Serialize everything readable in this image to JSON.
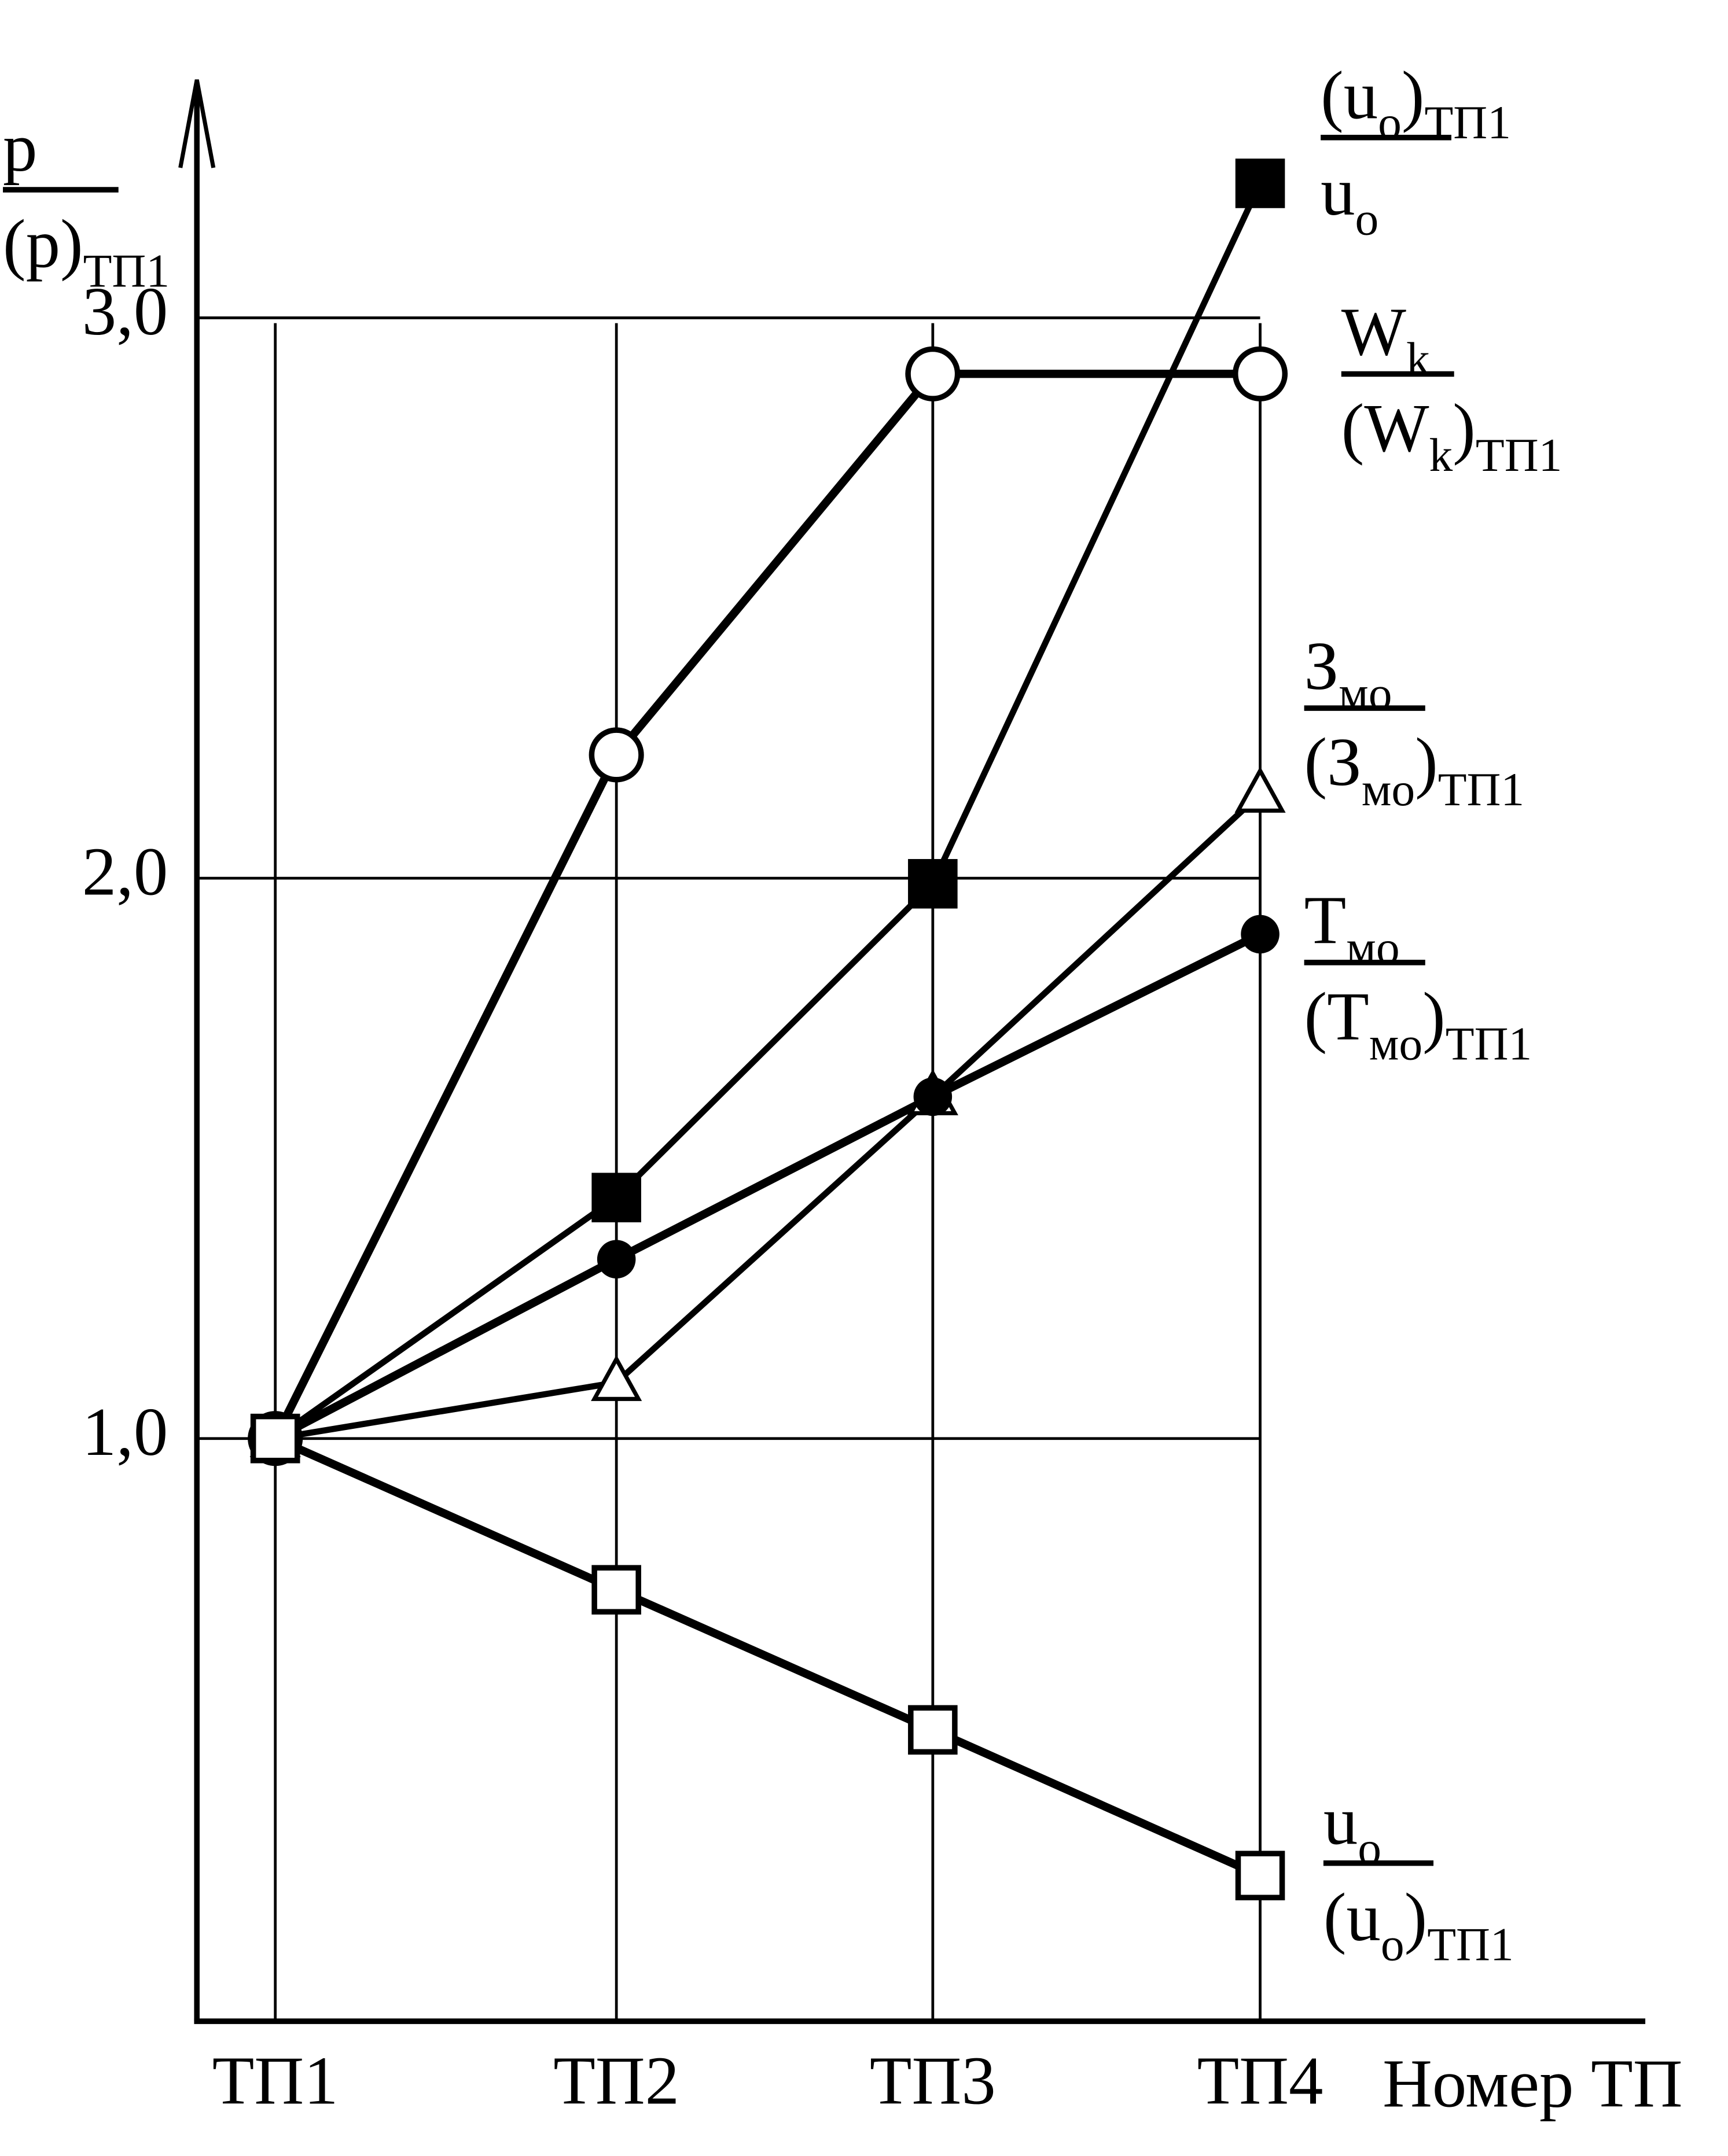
{
  "chart_data": {
    "type": "line",
    "y_label": {
      "numerator": [
        {
          "t": "p"
        }
      ],
      "denominator": [
        {
          "t": "(p)"
        },
        {
          "sub": "ТП1"
        }
      ]
    },
    "x_label": "Номер ТП",
    "categories": [
      "ТП1",
      "ТП2",
      "ТП3",
      "ТП4"
    ],
    "ylim": [
      -0.04,
      3.42
    ],
    "yticks": [
      {
        "value": 1,
        "label": "1,0"
      },
      {
        "value": 2,
        "label": "2,0"
      },
      {
        "value": 3,
        "label": "3,0"
      }
    ],
    "grid": true,
    "series": [
      {
        "color": "#000000",
        "marker": "square-filled",
        "values": [
          1.0,
          1.43,
          1.99,
          3.24
        ],
        "label": {
          "numerator": [
            {
              "t": "(u"
            },
            {
              "sub": "o"
            },
            {
              "t": ")"
            },
            {
              "sub": "ТП1"
            }
          ],
          "denominator": [
            {
              "t": "u"
            },
            {
              "sub": "o"
            }
          ]
        }
      },
      {
        "color": "#000000",
        "marker": "circle-open",
        "values": [
          1.0,
          2.22,
          2.9,
          2.9
        ],
        "label": {
          "numerator": [
            {
              "t": "W"
            },
            {
              "sub": "k"
            }
          ],
          "denominator": [
            {
              "t": "(W"
            },
            {
              "sub": "k"
            },
            {
              "t": ")"
            },
            {
              "sub": "ТП1"
            }
          ]
        }
      },
      {
        "color": "#000000",
        "marker": "triangle-open",
        "values": [
          1.0,
          1.1,
          1.61,
          2.15
        ],
        "label": {
          "numerator": [
            {
              "t": "З"
            },
            {
              "sub": "мо"
            }
          ],
          "denominator": [
            {
              "t": "(З"
            },
            {
              "sub": "мо"
            },
            {
              "t": ")"
            },
            {
              "sub": "ТП1"
            }
          ]
        }
      },
      {
        "color": "#000000",
        "marker": "circle-filled",
        "values": [
          1.0,
          1.32,
          1.61,
          1.9
        ],
        "label": {
          "numerator": [
            {
              "t": "T"
            },
            {
              "sub": "мо"
            }
          ],
          "denominator": [
            {
              "t": "(T"
            },
            {
              "sub": "мо"
            },
            {
              "t": ")"
            },
            {
              "sub": "ТП1"
            }
          ]
        }
      },
      {
        "color": "#000000",
        "marker": "square-open",
        "values": [
          1.0,
          0.73,
          0.48,
          0.22
        ],
        "label": {
          "numerator": [
            {
              "t": "u"
            },
            {
              "sub": "o"
            }
          ],
          "denominator": [
            {
              "t": "(u"
            },
            {
              "sub": "o"
            },
            {
              "t": ")"
            },
            {
              "sub": "ТП1"
            }
          ]
        }
      }
    ]
  }
}
